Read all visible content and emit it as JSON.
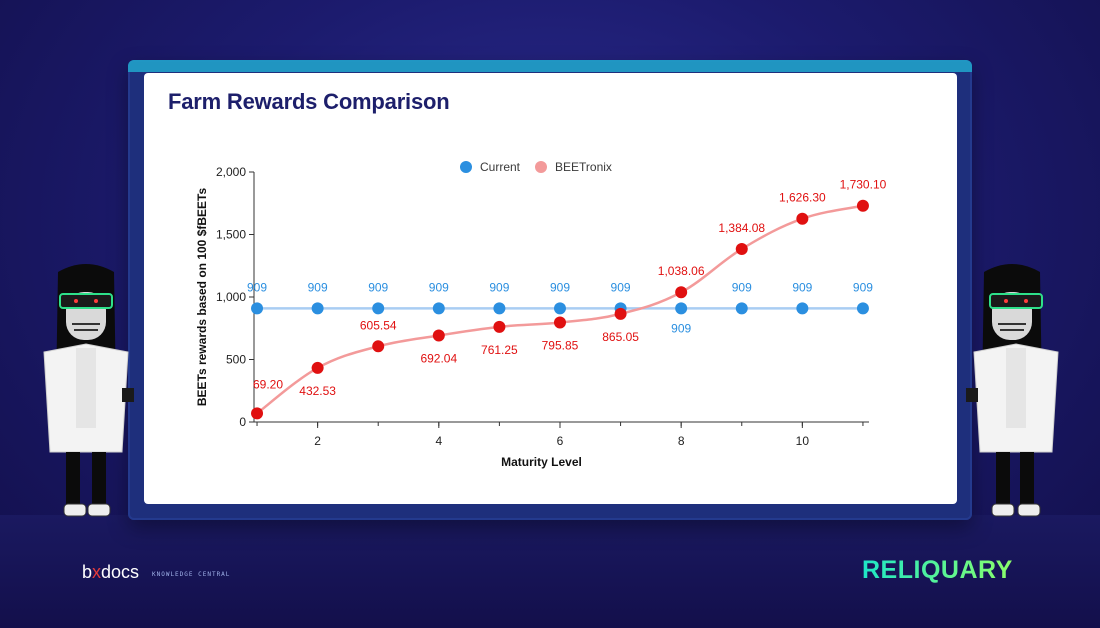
{
  "title": "Farm Rewards Comparison",
  "colors": {
    "current": "#2b8fe0",
    "current_line": "#a9cdf3",
    "beetronix": "#e01010",
    "beetronix_line": "#f39a9a",
    "title": "#1d1f6b"
  },
  "branding": {
    "left_logo_prefix": "b",
    "left_logo_mark": "x",
    "left_logo_suffix": "docs",
    "left_tagline": "KNOWLEDGE CENTRAL",
    "right_logo": "RELIQUARY"
  },
  "chart_data": {
    "type": "line",
    "title": "Farm Rewards Comparison",
    "xlabel": "Maturity Level",
    "ylabel": "BEETs rewards based on 100 $fBEETs",
    "x": [
      1,
      2,
      3,
      4,
      5,
      6,
      7,
      8,
      9,
      10,
      11
    ],
    "xticks": [
      2,
      4,
      6,
      8,
      10
    ],
    "xtick_labels": [
      "2",
      "4",
      "6",
      "8",
      "10"
    ],
    "xlim": [
      0.95,
      11.1
    ],
    "ylim": [
      0,
      2000
    ],
    "yticks": [
      0,
      500,
      1000,
      1500,
      2000
    ],
    "ytick_labels": [
      "0",
      "500",
      "1,000",
      "1,500",
      "2,000"
    ],
    "legend_position": "top-center",
    "series": [
      {
        "name": "Current",
        "values": [
          909,
          909,
          909,
          909,
          909,
          909,
          909,
          909,
          909,
          909,
          909
        ],
        "labels": [
          "909",
          "909",
          "909",
          "909",
          "909",
          "909",
          "909",
          "909",
          "909",
          "909",
          "909"
        ]
      },
      {
        "name": "BEETronix",
        "values": [
          69.2,
          432.53,
          605.54,
          692.04,
          761.25,
          795.85,
          865.05,
          1038.06,
          1384.08,
          1626.3,
          1730.1
        ],
        "labels": [
          "69.20",
          "432.53",
          "605.54",
          "692.04",
          "761.25",
          "795.85",
          "865.05",
          "1,038.06",
          "1,384.08",
          "1,626.30",
          "1,730.10"
        ]
      }
    ]
  }
}
